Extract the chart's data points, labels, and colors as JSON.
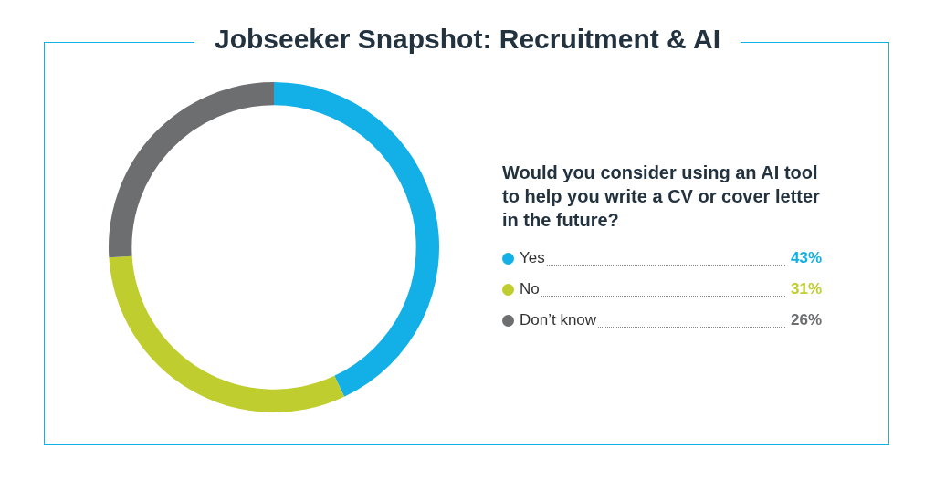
{
  "chart_data": {
    "type": "donut",
    "title": "Jobseeker Snapshot: Recruitment & AI",
    "subtitle": "Would you consider using an AI tool to help you write a CV or cover letter in the future?",
    "categories": [
      "Yes",
      "No",
      "Don’t know"
    ],
    "values": [
      43,
      31,
      26
    ],
    "colors": [
      "#12b0e6",
      "#c0cd2f",
      "#6d6e70"
    ],
    "value_labels": [
      "43%",
      "31%",
      "26%"
    ],
    "legend": "right"
  }
}
